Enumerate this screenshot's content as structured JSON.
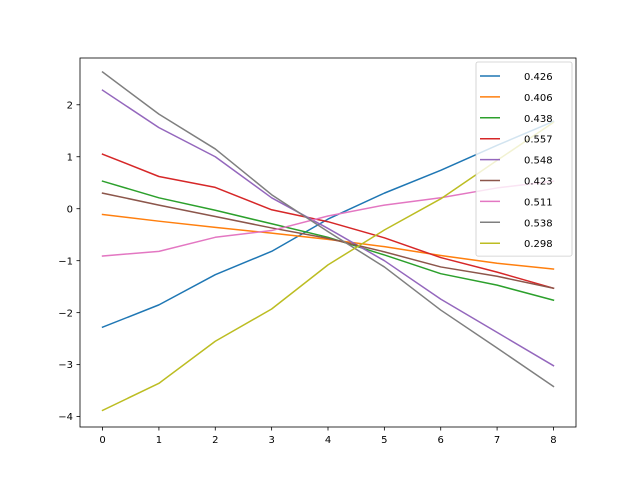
{
  "chart_data": {
    "type": "line",
    "title": "",
    "xlabel": "",
    "ylabel": "",
    "xlim": [
      -0.4,
      8.4
    ],
    "ylim": [
      -4.2,
      2.9
    ],
    "xticks": [
      0,
      1,
      2,
      3,
      4,
      5,
      6,
      7,
      8
    ],
    "yticks": [
      -4,
      -3,
      -2,
      -1,
      0,
      1,
      2
    ],
    "grid": false,
    "legend_position": "top-right",
    "x": [
      0,
      1,
      2,
      3,
      4,
      5,
      6,
      7,
      8
    ],
    "series": [
      {
        "name": "0.426",
        "color": "#1f77b4",
        "values": [
          -2.28,
          -1.85,
          -1.27,
          -0.82,
          -0.2,
          0.3,
          0.74,
          1.22,
          1.68
        ]
      },
      {
        "name": "0.406",
        "color": "#ff7f0e",
        "values": [
          -0.11,
          -0.24,
          -0.36,
          -0.47,
          -0.59,
          -0.73,
          -0.9,
          -1.05,
          -1.16
        ]
      },
      {
        "name": "0.438",
        "color": "#2ca02c",
        "values": [
          0.53,
          0.21,
          -0.03,
          -0.29,
          -0.55,
          -0.89,
          -1.25,
          -1.47,
          -1.76
        ]
      },
      {
        "name": "0.557",
        "color": "#d62728",
        "values": [
          1.05,
          0.62,
          0.41,
          -0.02,
          -0.25,
          -0.56,
          -0.94,
          -1.22,
          -1.53
        ]
      },
      {
        "name": "0.548",
        "color": "#9467bd",
        "values": [
          2.28,
          1.56,
          1.0,
          0.21,
          -0.38,
          -1.0,
          -1.74,
          -2.38,
          -3.02
        ]
      },
      {
        "name": "0.423",
        "color": "#8c564b",
        "values": [
          0.3,
          0.07,
          -0.15,
          -0.37,
          -0.57,
          -0.83,
          -1.12,
          -1.3,
          -1.53
        ]
      },
      {
        "name": "0.511",
        "color": "#e377c2",
        "values": [
          -0.91,
          -0.82,
          -0.55,
          -0.42,
          -0.14,
          0.07,
          0.21,
          0.4,
          0.53
        ]
      },
      {
        "name": "0.538",
        "color": "#7f7f7f",
        "values": [
          2.63,
          1.82,
          1.15,
          0.27,
          -0.44,
          -1.12,
          -1.95,
          -2.68,
          -3.42
        ]
      },
      {
        "name": "0.298",
        "color": "#bcbd22",
        "values": [
          -3.88,
          -3.36,
          -2.55,
          -1.93,
          -1.08,
          -0.41,
          0.19,
          0.93,
          1.66
        ]
      }
    ]
  }
}
